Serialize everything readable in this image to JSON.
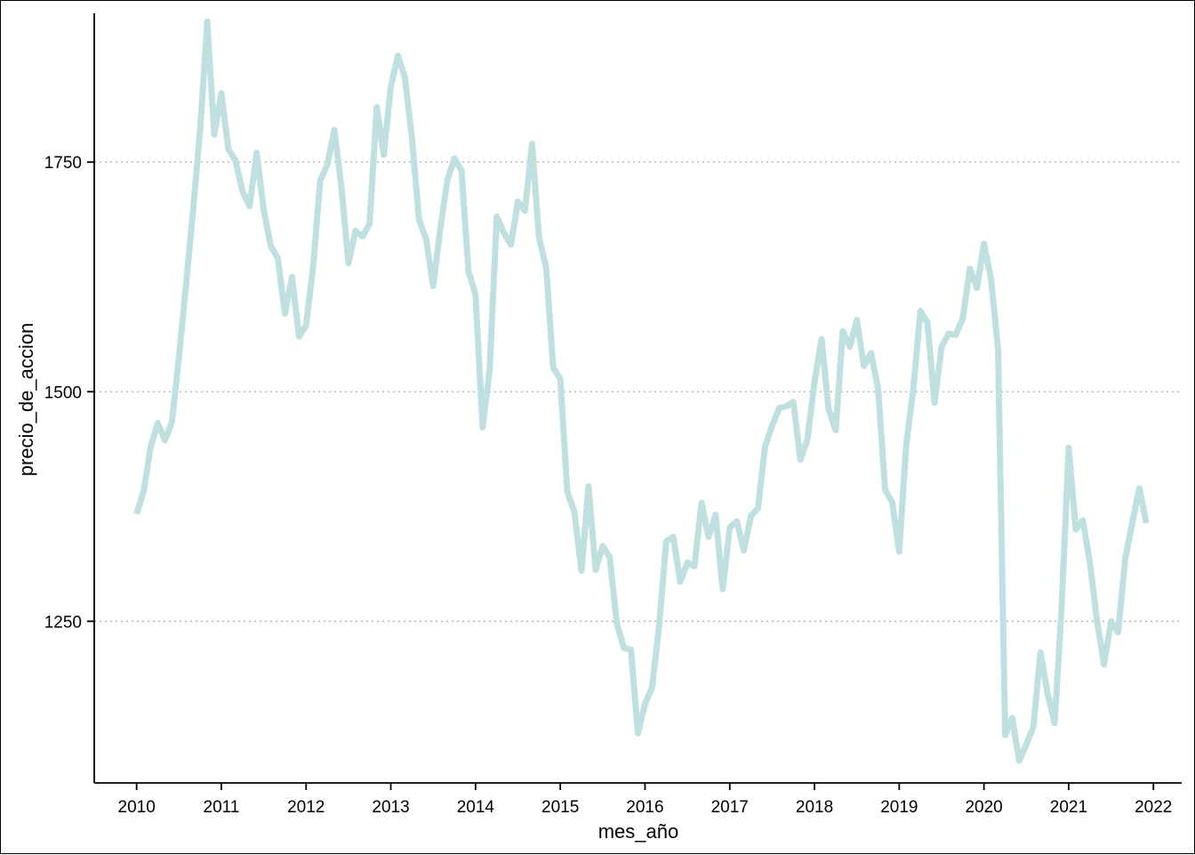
{
  "chart_data": {
    "type": "line",
    "title": "",
    "xlabel": "mes_año",
    "ylabel": "precio_de_accion",
    "x_ticks": [
      "2010",
      "2011",
      "2012",
      "2013",
      "2014",
      "2015",
      "2016",
      "2017",
      "2018",
      "2019",
      "2020",
      "2021",
      "2022"
    ],
    "y_ticks": [
      1250,
      1500,
      1750
    ],
    "xlim": [
      "2009-07-01",
      "2022-05-01"
    ],
    "ylim": [
      1074,
      1912
    ],
    "grid": "horizontal dotted at y ticks",
    "line_color": "#c0e0e0",
    "series": [
      {
        "points": [
          [
            "2010-01",
            1367
          ],
          [
            "2010-02",
            1392
          ],
          [
            "2010-03",
            1440
          ],
          [
            "2010-04",
            1466
          ],
          [
            "2010-05",
            1447
          ],
          [
            "2010-06",
            1467
          ],
          [
            "2010-07",
            1538
          ],
          [
            "2010-08",
            1616
          ],
          [
            "2010-09",
            1698
          ],
          [
            "2010-10",
            1785
          ],
          [
            "2010-11",
            1903
          ],
          [
            "2010-12",
            1780
          ],
          [
            "2011-01",
            1825
          ],
          [
            "2011-02",
            1764
          ],
          [
            "2011-03",
            1752
          ],
          [
            "2011-04",
            1718
          ],
          [
            "2011-05",
            1702
          ],
          [
            "2011-06",
            1760
          ],
          [
            "2011-07",
            1698
          ],
          [
            "2011-08",
            1659
          ],
          [
            "2011-09",
            1645
          ],
          [
            "2011-10",
            1585
          ],
          [
            "2011-11",
            1625
          ],
          [
            "2011-12",
            1560
          ],
          [
            "2012-01",
            1572
          ],
          [
            "2012-02",
            1636
          ],
          [
            "2012-03",
            1730
          ],
          [
            "2012-04",
            1747
          ],
          [
            "2012-05",
            1785
          ],
          [
            "2012-06",
            1723
          ],
          [
            "2012-07",
            1640
          ],
          [
            "2012-08",
            1675
          ],
          [
            "2012-09",
            1669
          ],
          [
            "2012-10",
            1683
          ],
          [
            "2012-11",
            1810
          ],
          [
            "2012-12",
            1758
          ],
          [
            "2013-01",
            1832
          ],
          [
            "2013-02",
            1866
          ],
          [
            "2013-03",
            1842
          ],
          [
            "2013-04",
            1775
          ],
          [
            "2013-05",
            1687
          ],
          [
            "2013-06",
            1666
          ],
          [
            "2013-07",
            1615
          ],
          [
            "2013-08",
            1677
          ],
          [
            "2013-09",
            1730
          ],
          [
            "2013-10",
            1754
          ],
          [
            "2013-11",
            1741
          ],
          [
            "2013-12",
            1631
          ],
          [
            "2014-01",
            1606
          ],
          [
            "2014-02",
            1461
          ],
          [
            "2014-03",
            1524
          ],
          [
            "2014-04",
            1691
          ],
          [
            "2014-05",
            1673
          ],
          [
            "2014-06",
            1660
          ],
          [
            "2014-07",
            1707
          ],
          [
            "2014-08",
            1697
          ],
          [
            "2014-09",
            1770
          ],
          [
            "2014-10",
            1667
          ],
          [
            "2014-11",
            1635
          ],
          [
            "2014-12",
            1526
          ],
          [
            "2015-01",
            1514
          ],
          [
            "2015-02",
            1391
          ],
          [
            "2015-03",
            1369
          ],
          [
            "2015-04",
            1305
          ],
          [
            "2015-05",
            1397
          ],
          [
            "2015-06",
            1306
          ],
          [
            "2015-07",
            1332
          ],
          [
            "2015-08",
            1320
          ],
          [
            "2015-09",
            1248
          ],
          [
            "2015-10",
            1221
          ],
          [
            "2015-11",
            1219
          ],
          [
            "2015-12",
            1128
          ],
          [
            "2016-01",
            1160
          ],
          [
            "2016-02",
            1178
          ],
          [
            "2016-03",
            1245
          ],
          [
            "2016-04",
            1337
          ],
          [
            "2016-05",
            1342
          ],
          [
            "2016-06",
            1293
          ],
          [
            "2016-07",
            1314
          ],
          [
            "2016-08",
            1310
          ],
          [
            "2016-09",
            1379
          ],
          [
            "2016-10",
            1342
          ],
          [
            "2016-11",
            1366
          ],
          [
            "2016-12",
            1285
          ],
          [
            "2017-01",
            1352
          ],
          [
            "2017-02",
            1359
          ],
          [
            "2017-03",
            1327
          ],
          [
            "2017-04",
            1365
          ],
          [
            "2017-05",
            1373
          ],
          [
            "2017-06",
            1440
          ],
          [
            "2017-07",
            1463
          ],
          [
            "2017-08",
            1482
          ],
          [
            "2017-09",
            1484
          ],
          [
            "2017-10",
            1489
          ],
          [
            "2017-11",
            1426
          ],
          [
            "2017-12",
            1448
          ],
          [
            "2018-01",
            1510
          ],
          [
            "2018-02",
            1557
          ],
          [
            "2018-03",
            1481
          ],
          [
            "2018-04",
            1458
          ],
          [
            "2018-05",
            1566
          ],
          [
            "2018-06",
            1549
          ],
          [
            "2018-07",
            1578
          ],
          [
            "2018-08",
            1528
          ],
          [
            "2018-09",
            1542
          ],
          [
            "2018-10",
            1504
          ],
          [
            "2018-11",
            1393
          ],
          [
            "2018-12",
            1380
          ],
          [
            "2019-01",
            1326
          ],
          [
            "2019-02",
            1443
          ],
          [
            "2019-03",
            1503
          ],
          [
            "2019-04",
            1588
          ],
          [
            "2019-05",
            1575
          ],
          [
            "2019-06",
            1488
          ],
          [
            "2019-07",
            1549
          ],
          [
            "2019-08",
            1563
          ],
          [
            "2019-09",
            1562
          ],
          [
            "2019-10",
            1580
          ],
          [
            "2019-11",
            1634
          ],
          [
            "2019-12",
            1613
          ],
          [
            "2020-01",
            1661
          ],
          [
            "2020-02",
            1623
          ],
          [
            "2020-03",
            1546
          ],
          [
            "2020-04",
            1126
          ],
          [
            "2020-05",
            1145
          ],
          [
            "2020-06",
            1098
          ],
          [
            "2020-07",
            1116
          ],
          [
            "2020-08",
            1135
          ],
          [
            "2020-09",
            1216
          ],
          [
            "2020-10",
            1172
          ],
          [
            "2020-11",
            1139
          ],
          [
            "2020-12",
            1265
          ],
          [
            "2021-01",
            1439
          ],
          [
            "2021-02",
            1350
          ],
          [
            "2021-03",
            1360
          ],
          [
            "2021-04",
            1314
          ],
          [
            "2021-05",
            1251
          ],
          [
            "2021-06",
            1203
          ],
          [
            "2021-07",
            1250
          ],
          [
            "2021-08",
            1238
          ],
          [
            "2021-09",
            1318
          ],
          [
            "2021-10",
            1357
          ],
          [
            "2021-11",
            1395
          ],
          [
            "2021-12",
            1357
          ]
        ]
      }
    ]
  }
}
